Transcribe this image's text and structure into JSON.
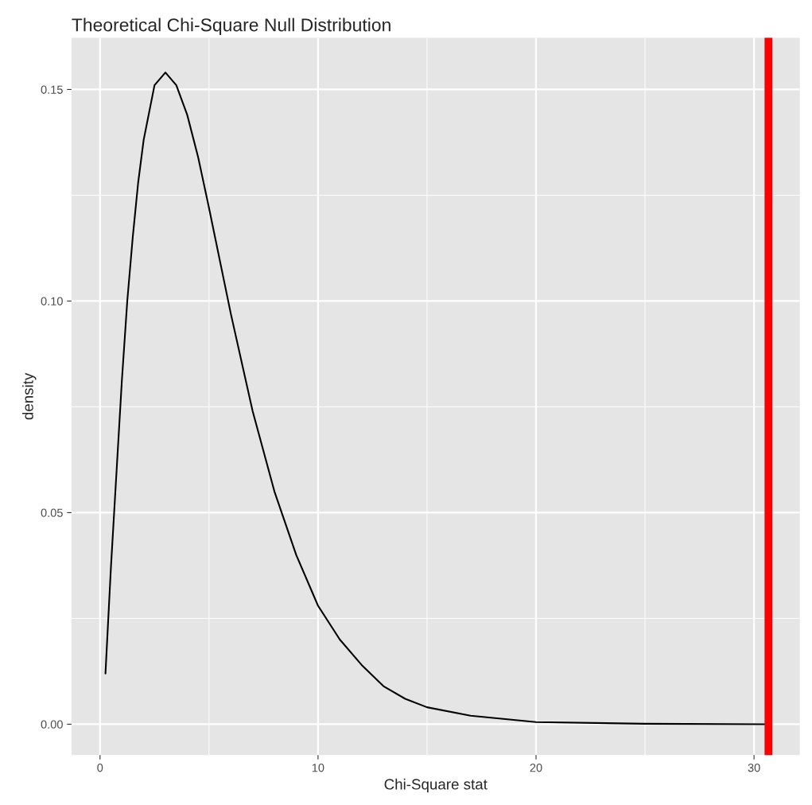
{
  "chart_data": {
    "type": "line",
    "title": "Theoretical Chi-Square Null Distribution",
    "xlabel": "Chi-Square stat",
    "ylabel": "density",
    "x": [
      0.25,
      0.5,
      0.75,
      1,
      1.25,
      1.5,
      1.75,
      2,
      2.5,
      3,
      3.5,
      4,
      4.5,
      5,
      6,
      7,
      8,
      9,
      10,
      11,
      12,
      13,
      14,
      15,
      17,
      20,
      25,
      30.66
    ],
    "series": [
      {
        "color": "#000000",
        "values": [
          0.012,
          0.037,
          0.059,
          0.081,
          0.1,
          0.115,
          0.128,
          0.138,
          0.151,
          0.154,
          0.151,
          0.144,
          0.134,
          0.122,
          0.097,
          0.074,
          0.055,
          0.04,
          0.028,
          0.02,
          0.014,
          0.009,
          0.006,
          0.004,
          0.002,
          0.0005,
          0.0001,
          0.0
        ]
      }
    ],
    "xlim": [
      -1.31,
      32.1
    ],
    "ylim": [
      -0.0073,
      0.1622
    ],
    "xticks": [
      0,
      10,
      20,
      30
    ],
    "yticks": [
      {
        "value": 0,
        "label": "0.00"
      },
      {
        "value": 0.05,
        "label": "0.05"
      },
      {
        "value": 0.1,
        "label": "0.10"
      },
      {
        "value": 0.15,
        "label": "0.15"
      }
    ],
    "ref_lines": [
      {
        "axis": "x",
        "value": 30.66,
        "color": "#ff0000"
      }
    ],
    "grid": true,
    "marker": "none",
    "line_style": "solid"
  }
}
